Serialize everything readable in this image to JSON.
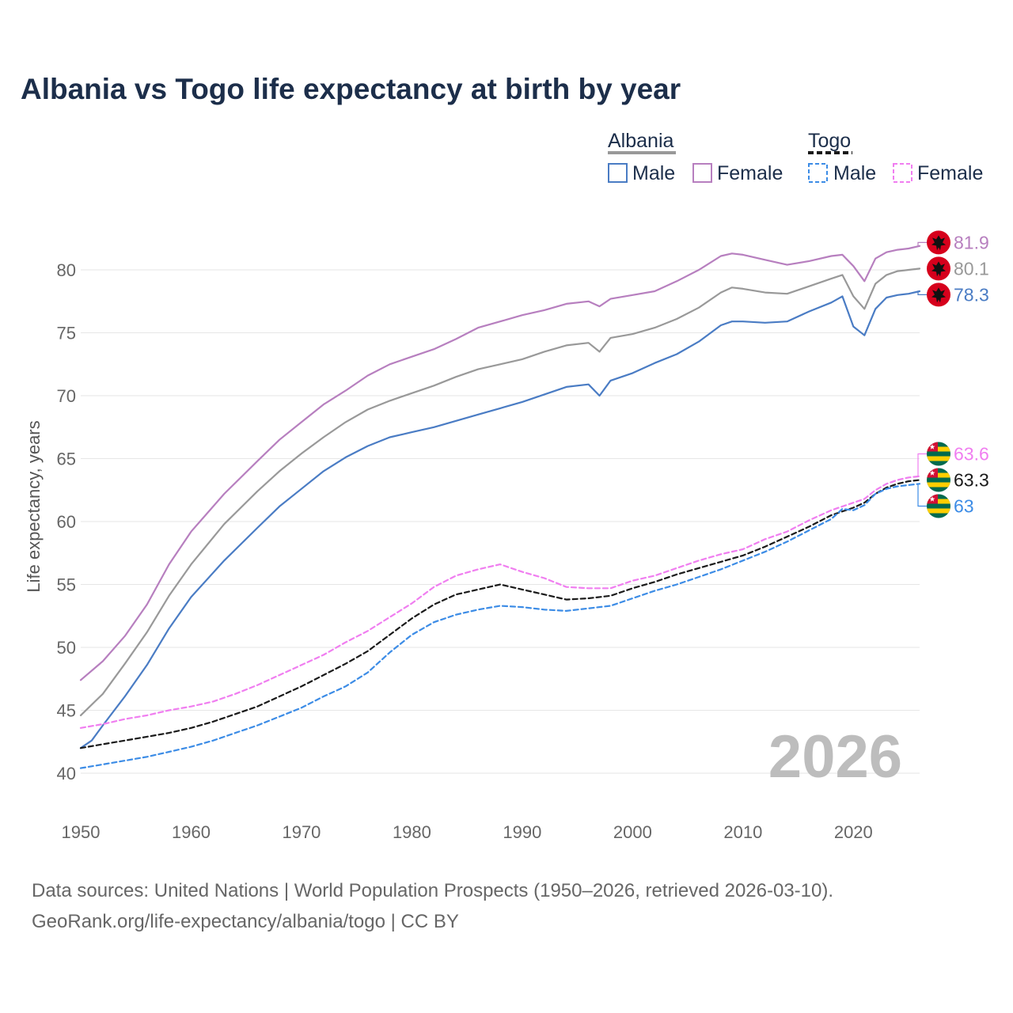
{
  "title": "Albania vs Togo life expectancy at birth by year",
  "footer": {
    "sources": "Data sources: United Nations | World Population Prospects (1950–2026, retrieved 2026-03-10).",
    "credit": "GeoRank.org/life-expectancy/albania/togo | CC BY"
  },
  "legend": {
    "groups": [
      {
        "name": "Albania",
        "items": [
          {
            "label": "Male",
            "color": "#4a7cc4",
            "dashed": false
          },
          {
            "label": "Female",
            "color": "#b77fbf",
            "dashed": false
          }
        ]
      },
      {
        "name": "Togo",
        "items": [
          {
            "label": "Male",
            "color": "#3c8ce6",
            "dashed": true
          },
          {
            "label": "Female",
            "color": "#f07ef0",
            "dashed": true
          }
        ]
      }
    ]
  },
  "chart_data": {
    "type": "line",
    "title": "Albania vs Togo life expectancy at birth by year",
    "xlabel": "",
    "ylabel": "Life expectancy, years",
    "xlim": [
      1950,
      2026
    ],
    "ylim": [
      38,
      84
    ],
    "x_ticks": [
      1950,
      1960,
      1970,
      1980,
      1990,
      2000,
      2010,
      2020
    ],
    "y_ticks": [
      40,
      45,
      50,
      55,
      60,
      65,
      70,
      75,
      80
    ],
    "grid": true,
    "current_year": "2026",
    "series": [
      {
        "name": "Albania Female",
        "country": "Albania",
        "color": "#b77fbf",
        "dashed": false,
        "end_label": "81.9",
        "points": [
          [
            1950,
            47.4
          ],
          [
            1952,
            48.9
          ],
          [
            1954,
            50.9
          ],
          [
            1956,
            53.4
          ],
          [
            1958,
            56.6
          ],
          [
            1960,
            59.2
          ],
          [
            1963,
            62.2
          ],
          [
            1966,
            64.8
          ],
          [
            1968,
            66.5
          ],
          [
            1970,
            67.9
          ],
          [
            1972,
            69.3
          ],
          [
            1974,
            70.4
          ],
          [
            1976,
            71.6
          ],
          [
            1978,
            72.5
          ],
          [
            1980,
            73.1
          ],
          [
            1982,
            73.7
          ],
          [
            1984,
            74.5
          ],
          [
            1986,
            75.4
          ],
          [
            1988,
            75.9
          ],
          [
            1990,
            76.4
          ],
          [
            1992,
            76.8
          ],
          [
            1994,
            77.3
          ],
          [
            1996,
            77.5
          ],
          [
            1997,
            77.1
          ],
          [
            1998,
            77.7
          ],
          [
            2000,
            78.0
          ],
          [
            2002,
            78.3
          ],
          [
            2004,
            79.1
          ],
          [
            2006,
            80.0
          ],
          [
            2008,
            81.1
          ],
          [
            2009,
            81.3
          ],
          [
            2010,
            81.2
          ],
          [
            2012,
            80.8
          ],
          [
            2014,
            80.4
          ],
          [
            2016,
            80.7
          ],
          [
            2018,
            81.1
          ],
          [
            2019,
            81.2
          ],
          [
            2020,
            80.3
          ],
          [
            2021,
            79.1
          ],
          [
            2022,
            80.9
          ],
          [
            2023,
            81.4
          ],
          [
            2024,
            81.6
          ],
          [
            2025,
            81.7
          ],
          [
            2026,
            81.9
          ]
        ]
      },
      {
        "name": "Albania Both",
        "country": "Albania",
        "color": "#999999",
        "dashed": false,
        "end_label": "80.1",
        "points": [
          [
            1950,
            44.6
          ],
          [
            1952,
            46.3
          ],
          [
            1954,
            48.7
          ],
          [
            1956,
            51.2
          ],
          [
            1958,
            54.1
          ],
          [
            1960,
            56.6
          ],
          [
            1963,
            59.8
          ],
          [
            1966,
            62.4
          ],
          [
            1968,
            64.0
          ],
          [
            1970,
            65.4
          ],
          [
            1972,
            66.7
          ],
          [
            1974,
            67.9
          ],
          [
            1976,
            68.9
          ],
          [
            1978,
            69.6
          ],
          [
            1980,
            70.2
          ],
          [
            1982,
            70.8
          ],
          [
            1984,
            71.5
          ],
          [
            1986,
            72.1
          ],
          [
            1988,
            72.5
          ],
          [
            1990,
            72.9
          ],
          [
            1992,
            73.5
          ],
          [
            1994,
            74.0
          ],
          [
            1996,
            74.2
          ],
          [
            1997,
            73.5
          ],
          [
            1998,
            74.6
          ],
          [
            2000,
            74.9
          ],
          [
            2002,
            75.4
          ],
          [
            2004,
            76.1
          ],
          [
            2006,
            77.0
          ],
          [
            2008,
            78.2
          ],
          [
            2009,
            78.6
          ],
          [
            2010,
            78.5
          ],
          [
            2012,
            78.2
          ],
          [
            2014,
            78.1
          ],
          [
            2016,
            78.7
          ],
          [
            2018,
            79.3
          ],
          [
            2019,
            79.6
          ],
          [
            2020,
            77.9
          ],
          [
            2021,
            76.9
          ],
          [
            2022,
            78.9
          ],
          [
            2023,
            79.6
          ],
          [
            2024,
            79.9
          ],
          [
            2025,
            80.0
          ],
          [
            2026,
            80.1
          ]
        ]
      },
      {
        "name": "Albania Male",
        "country": "Albania",
        "color": "#4a7cc4",
        "dashed": false,
        "end_label": "78.3",
        "points": [
          [
            1950,
            42.0
          ],
          [
            1951,
            42.6
          ],
          [
            1952,
            43.8
          ],
          [
            1954,
            46.1
          ],
          [
            1956,
            48.6
          ],
          [
            1958,
            51.5
          ],
          [
            1960,
            54.0
          ],
          [
            1963,
            56.9
          ],
          [
            1966,
            59.5
          ],
          [
            1968,
            61.2
          ],
          [
            1970,
            62.6
          ],
          [
            1972,
            64.0
          ],
          [
            1974,
            65.1
          ],
          [
            1976,
            66.0
          ],
          [
            1978,
            66.7
          ],
          [
            1980,
            67.1
          ],
          [
            1982,
            67.5
          ],
          [
            1984,
            68.0
          ],
          [
            1986,
            68.5
          ],
          [
            1988,
            69.0
          ],
          [
            1990,
            69.5
          ],
          [
            1992,
            70.1
          ],
          [
            1994,
            70.7
          ],
          [
            1996,
            70.9
          ],
          [
            1997,
            70.0
          ],
          [
            1998,
            71.2
          ],
          [
            2000,
            71.8
          ],
          [
            2002,
            72.6
          ],
          [
            2004,
            73.3
          ],
          [
            2006,
            74.3
          ],
          [
            2008,
            75.6
          ],
          [
            2009,
            75.9
          ],
          [
            2010,
            75.9
          ],
          [
            2012,
            75.8
          ],
          [
            2014,
            75.9
          ],
          [
            2016,
            76.7
          ],
          [
            2018,
            77.4
          ],
          [
            2019,
            77.9
          ],
          [
            2020,
            75.5
          ],
          [
            2021,
            74.8
          ],
          [
            2022,
            76.9
          ],
          [
            2023,
            77.8
          ],
          [
            2024,
            78.0
          ],
          [
            2025,
            78.1
          ],
          [
            2026,
            78.3
          ]
        ]
      },
      {
        "name": "Togo Female",
        "country": "Togo",
        "color": "#f07ef0",
        "dashed": true,
        "end_label": "63.6",
        "points": [
          [
            1950,
            43.6
          ],
          [
            1952,
            43.9
          ],
          [
            1954,
            44.3
          ],
          [
            1956,
            44.6
          ],
          [
            1958,
            45.0
          ],
          [
            1960,
            45.3
          ],
          [
            1962,
            45.7
          ],
          [
            1964,
            46.3
          ],
          [
            1966,
            47.0
          ],
          [
            1968,
            47.8
          ],
          [
            1970,
            48.6
          ],
          [
            1972,
            49.4
          ],
          [
            1974,
            50.4
          ],
          [
            1976,
            51.3
          ],
          [
            1978,
            52.4
          ],
          [
            1980,
            53.5
          ],
          [
            1982,
            54.8
          ],
          [
            1984,
            55.7
          ],
          [
            1986,
            56.2
          ],
          [
            1988,
            56.6
          ],
          [
            1990,
            56.0
          ],
          [
            1992,
            55.5
          ],
          [
            1994,
            54.8
          ],
          [
            1996,
            54.7
          ],
          [
            1998,
            54.7
          ],
          [
            2000,
            55.3
          ],
          [
            2002,
            55.7
          ],
          [
            2004,
            56.3
          ],
          [
            2006,
            56.9
          ],
          [
            2008,
            57.4
          ],
          [
            2010,
            57.8
          ],
          [
            2012,
            58.6
          ],
          [
            2014,
            59.2
          ],
          [
            2016,
            60.1
          ],
          [
            2018,
            60.9
          ],
          [
            2020,
            61.5
          ],
          [
            2021,
            61.8
          ],
          [
            2022,
            62.5
          ],
          [
            2023,
            63.0
          ],
          [
            2024,
            63.3
          ],
          [
            2025,
            63.5
          ],
          [
            2026,
            63.6
          ]
        ]
      },
      {
        "name": "Togo Both",
        "country": "Togo",
        "color": "#1a1a1a",
        "dashed": true,
        "end_label": "63.3",
        "points": [
          [
            1950,
            42.0
          ],
          [
            1952,
            42.3
          ],
          [
            1954,
            42.6
          ],
          [
            1956,
            42.9
          ],
          [
            1958,
            43.2
          ],
          [
            1960,
            43.6
          ],
          [
            1962,
            44.1
          ],
          [
            1964,
            44.7
          ],
          [
            1966,
            45.3
          ],
          [
            1968,
            46.1
          ],
          [
            1970,
            46.9
          ],
          [
            1972,
            47.8
          ],
          [
            1974,
            48.7
          ],
          [
            1976,
            49.7
          ],
          [
            1978,
            51.0
          ],
          [
            1980,
            52.3
          ],
          [
            1982,
            53.4
          ],
          [
            1984,
            54.2
          ],
          [
            1986,
            54.6
          ],
          [
            1988,
            55.0
          ],
          [
            1990,
            54.6
          ],
          [
            1992,
            54.2
          ],
          [
            1994,
            53.8
          ],
          [
            1996,
            53.9
          ],
          [
            1998,
            54.1
          ],
          [
            2000,
            54.7
          ],
          [
            2002,
            55.2
          ],
          [
            2004,
            55.8
          ],
          [
            2006,
            56.3
          ],
          [
            2008,
            56.8
          ],
          [
            2010,
            57.3
          ],
          [
            2012,
            58.0
          ],
          [
            2014,
            58.8
          ],
          [
            2016,
            59.6
          ],
          [
            2018,
            60.5
          ],
          [
            2020,
            61.1
          ],
          [
            2021,
            61.5
          ],
          [
            2022,
            62.2
          ],
          [
            2023,
            62.7
          ],
          [
            2024,
            63.0
          ],
          [
            2025,
            63.2
          ],
          [
            2026,
            63.3
          ]
        ]
      },
      {
        "name": "Togo Male",
        "country": "Togo",
        "color": "#3c8ce6",
        "dashed": true,
        "end_label": "63",
        "points": [
          [
            1950,
            40.4
          ],
          [
            1952,
            40.7
          ],
          [
            1954,
            41.0
          ],
          [
            1956,
            41.3
          ],
          [
            1958,
            41.7
          ],
          [
            1960,
            42.1
          ],
          [
            1962,
            42.6
          ],
          [
            1964,
            43.2
          ],
          [
            1966,
            43.8
          ],
          [
            1968,
            44.5
          ],
          [
            1970,
            45.2
          ],
          [
            1972,
            46.1
          ],
          [
            1974,
            46.9
          ],
          [
            1976,
            48.0
          ],
          [
            1978,
            49.6
          ],
          [
            1980,
            51.0
          ],
          [
            1982,
            52.0
          ],
          [
            1984,
            52.6
          ],
          [
            1986,
            53.0
          ],
          [
            1988,
            53.3
          ],
          [
            1990,
            53.2
          ],
          [
            1992,
            53.0
          ],
          [
            1994,
            52.9
          ],
          [
            1996,
            53.1
          ],
          [
            1998,
            53.3
          ],
          [
            2000,
            53.9
          ],
          [
            2002,
            54.5
          ],
          [
            2004,
            55.0
          ],
          [
            2006,
            55.6
          ],
          [
            2008,
            56.2
          ],
          [
            2010,
            56.9
          ],
          [
            2012,
            57.6
          ],
          [
            2014,
            58.4
          ],
          [
            2016,
            59.3
          ],
          [
            2018,
            60.2
          ],
          [
            2019,
            61.0
          ],
          [
            2020,
            60.9
          ],
          [
            2021,
            61.3
          ],
          [
            2022,
            62.2
          ],
          [
            2023,
            62.6
          ],
          [
            2024,
            62.8
          ],
          [
            2025,
            62.9
          ],
          [
            2026,
            63.0
          ]
        ]
      }
    ]
  }
}
